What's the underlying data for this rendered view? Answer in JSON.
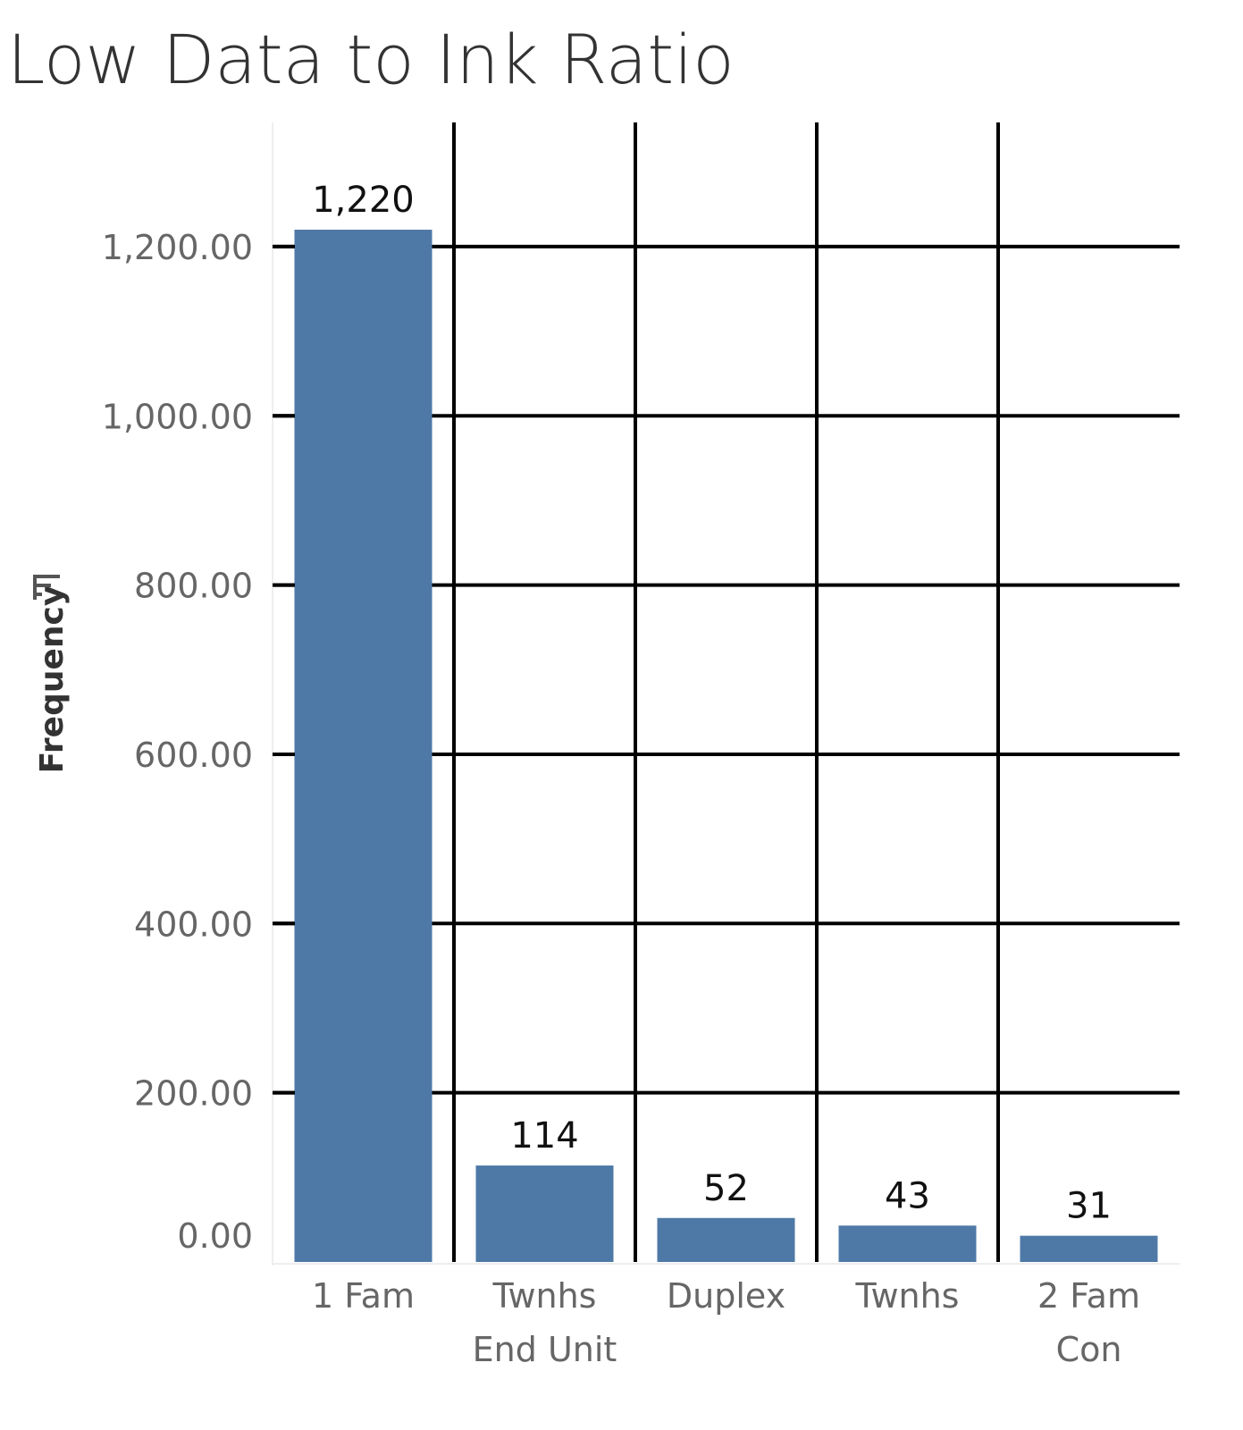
{
  "chart_data": {
    "type": "bar",
    "title": "Low Data to Ink Ratio",
    "xlabel": "",
    "ylabel": "Frequency",
    "ylabel_icon": "sort-descending-icon",
    "categories": [
      [
        "1 Fam"
      ],
      [
        "Twnhs",
        "End Unit"
      ],
      [
        "Duplex"
      ],
      [
        "Twnhs"
      ],
      [
        "2 Fam",
        "Con"
      ]
    ],
    "values": [
      1220,
      114,
      52,
      43,
      31
    ],
    "data_labels": [
      "1,220",
      "114",
      "52",
      "43",
      "31"
    ],
    "ylim": [
      0,
      1300
    ],
    "yticks": [
      0,
      200,
      400,
      600,
      800,
      1000,
      1200
    ],
    "ytick_labels": [
      "0.00",
      "200.00",
      "400.00",
      "600.00",
      "800.00",
      "1,000.00",
      "1,200.00"
    ],
    "grid": true,
    "bar_color": "#4e79a7",
    "grid_color": "#000000"
  }
}
